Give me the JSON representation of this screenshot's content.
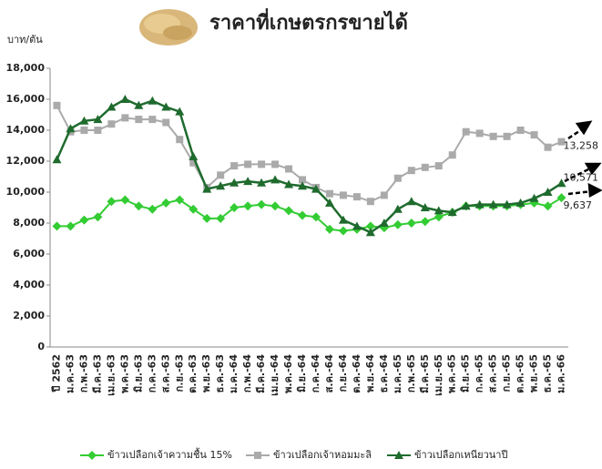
{
  "chart_data": {
    "type": "line",
    "title": "ราคาที่เกษตรกรขายได้",
    "y_label": "บาท/ตัน",
    "categories": [
      "ปี 2562",
      "ม.ค.-63",
      "ก.พ.-63",
      "มี.ค.-63",
      "เม.ย.-63",
      "พ.ค.-63",
      "มิ.ย.-63",
      "ก.ค.-63",
      "ส.ค.-63",
      "ก.ย.-63",
      "ต.ค.-63",
      "พ.ย.-63",
      "ธ.ค.-63",
      "ม.ค.-64",
      "ก.พ.-64",
      "มี.ค.-64",
      "เม.ย.-64",
      "พ.ค.-64",
      "มิ.ย.-64",
      "ก.ค.-64",
      "ส.ค.-64",
      "ก.ย.-64",
      "ต.ค.-64",
      "พ.ย.-64",
      "ธ.ค.-64",
      "ม.ค.-65",
      "ก.พ.-65",
      "มี.ค.-65",
      "เม.ย.-65",
      "พ.ค.-65",
      "มิ.ย.-65",
      "ก.ค.-65",
      "ส.ค.-65",
      "ก.ย.-65",
      "ต.ค.-65",
      "พ.ย.-65",
      "ธ.ค.-65",
      "ม.ค.-66"
    ],
    "series": [
      {
        "name": "ข้าวเปลือกเจ้าความชื้น 15%",
        "color": "#33cc33",
        "marker": "diamond",
        "values": [
          7800,
          7800,
          8200,
          8400,
          9400,
          9500,
          9100,
          8900,
          9300,
          9500,
          8900,
          8300,
          8300,
          9000,
          9100,
          9200,
          9100,
          8800,
          8500,
          8400,
          7600,
          7500,
          7600,
          7800,
          7700,
          7900,
          8000,
          8100,
          8400,
          8700,
          9100,
          9100,
          9100,
          9100,
          9200,
          9300,
          9100,
          9637
        ],
        "value_labels": [
          null,
          null,
          null,
          null,
          null,
          null,
          null,
          null,
          null,
          null,
          null,
          null,
          null,
          null,
          null,
          null,
          null,
          null,
          null,
          null,
          null,
          null,
          null,
          null,
          null,
          null,
          null,
          null,
          null,
          null,
          null,
          null,
          null,
          null,
          null,
          null,
          null,
          "9,637"
        ]
      },
      {
        "name": "ข้าวเปลือกเจ้าหอมมะลิ",
        "color": "#aaaaaa",
        "marker": "square",
        "values": [
          15600,
          13900,
          14000,
          14000,
          14400,
          14800,
          14700,
          14700,
          14500,
          13400,
          11900,
          10300,
          11100,
          11700,
          11800,
          11800,
          11800,
          11500,
          10800,
          10300,
          9900,
          9800,
          9700,
          9400,
          9800,
          10900,
          11400,
          11600,
          11700,
          12400,
          13900,
          13800,
          13600,
          13600,
          14000,
          13700,
          12900,
          13258
        ],
        "value_labels": [
          null,
          null,
          null,
          null,
          null,
          null,
          null,
          null,
          null,
          null,
          null,
          null,
          null,
          null,
          null,
          null,
          null,
          null,
          null,
          null,
          null,
          null,
          null,
          null,
          null,
          null,
          null,
          null,
          null,
          null,
          null,
          null,
          null,
          null,
          null,
          null,
          null,
          "13,258"
        ]
      },
      {
        "name": "ข้าวเปลือกเหนียวนาปี",
        "color": "#1f6b2e",
        "marker": "triangle",
        "values": [
          12100,
          14100,
          14600,
          14700,
          15500,
          16000,
          15600,
          15900,
          15500,
          15200,
          12300,
          10200,
          10400,
          10600,
          10700,
          10600,
          10800,
          10500,
          10400,
          10200,
          9300,
          8200,
          7800,
          7400,
          8000,
          8900,
          9400,
          9000,
          8800,
          8700,
          9100,
          9200,
          9200,
          9200,
          9300,
          9600,
          10000,
          10571
        ],
        "value_labels": [
          null,
          null,
          null,
          null,
          null,
          null,
          null,
          null,
          null,
          null,
          null,
          null,
          null,
          null,
          null,
          null,
          null,
          null,
          null,
          null,
          null,
          null,
          null,
          null,
          null,
          null,
          null,
          null,
          null,
          null,
          null,
          null,
          null,
          null,
          null,
          null,
          null,
          "10,571"
        ]
      }
    ],
    "ylim": [
      0,
      18000
    ],
    "yticks": [
      0,
      {
        "value": 2000,
        "label": "2,000"
      },
      {
        "value": 4000,
        "label": "4,000"
      },
      {
        "value": 6000,
        "label": "6,000"
      },
      {
        "value": 8000,
        "label": "8,000"
      },
      {
        "value": 10000,
        "label": "10,000"
      },
      {
        "value": 12000,
        "label": "12,000"
      },
      {
        "value": 14000,
        "label": "14,000"
      },
      {
        "value": 16000,
        "label": "16,000"
      },
      {
        "value": 18000,
        "label": "18,000"
      }
    ],
    "grid": false,
    "legend": "bottom"
  }
}
